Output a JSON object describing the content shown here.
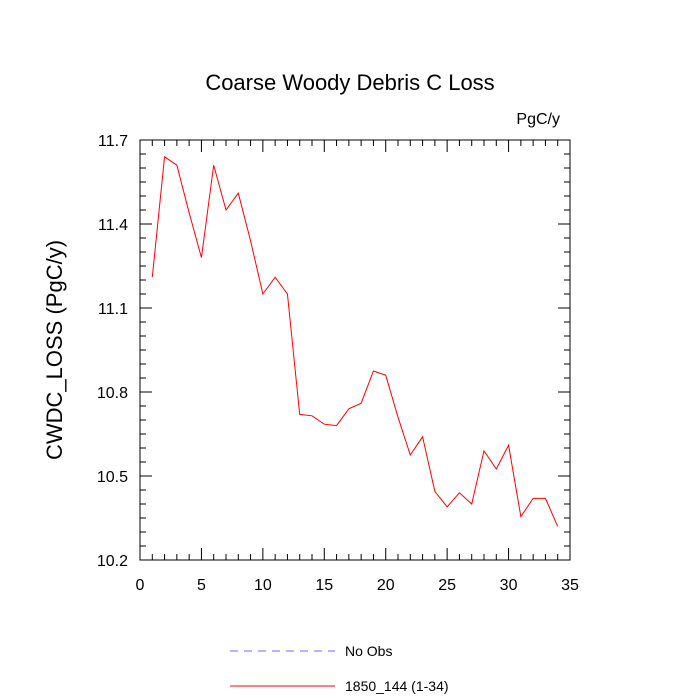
{
  "chart_data": {
    "type": "line",
    "title": "Coarse Woody Debris C Loss",
    "units": "PgC/y",
    "ylabel": "CWDC_LOSS  (PgC/y)",
    "xlabel": "",
    "xlim": [
      0,
      35
    ],
    "ylim": [
      10.2,
      11.7
    ],
    "x_ticks": [
      0,
      5,
      10,
      15,
      20,
      25,
      30,
      35
    ],
    "y_ticks": [
      10.2,
      10.5,
      10.8,
      11.1,
      11.4,
      11.7
    ],
    "x_tick_labels": [
      "0",
      "5",
      "10",
      "15",
      "20",
      "25",
      "30",
      "35"
    ],
    "y_tick_labels": [
      "10.2",
      "10.5",
      "10.8",
      "11.1",
      "11.4",
      "11.7"
    ],
    "grid": false,
    "legend_position": "bottom",
    "series": [
      {
        "name": "No Obs",
        "color": "#6b6bff",
        "dash": "dashed",
        "x": [],
        "values": []
      },
      {
        "name": "1850_144 (1-34)",
        "color": "#ff0000",
        "dash": "solid",
        "x": [
          1,
          2,
          3,
          4,
          5,
          6,
          7,
          8,
          9,
          10,
          11,
          12,
          13,
          14,
          15,
          16,
          17,
          18,
          19,
          20,
          21,
          22,
          23,
          24,
          25,
          26,
          27,
          28,
          29,
          30,
          31,
          32,
          33,
          34
        ],
        "values": [
          11.21,
          11.64,
          11.61,
          11.44,
          11.28,
          11.61,
          11.45,
          11.51,
          11.34,
          11.15,
          11.21,
          11.15,
          10.72,
          10.715,
          10.685,
          10.68,
          10.74,
          10.76,
          10.875,
          10.86,
          10.71,
          10.575,
          10.64,
          10.445,
          10.39,
          10.44,
          10.4,
          10.59,
          10.525,
          10.61,
          10.355,
          10.42,
          10.42,
          10.32
        ]
      }
    ]
  }
}
